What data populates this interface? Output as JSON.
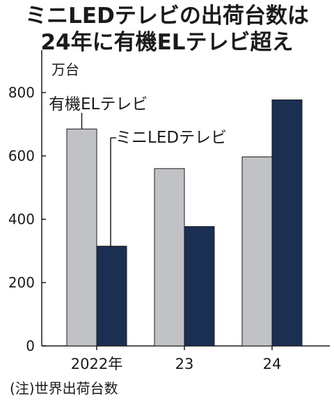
{
  "title_lines": [
    "ミニLEDテレビの出荷台数は",
    "24年に有機ELテレビ超え"
  ],
  "note": "(注)世界出荷台数",
  "chart_data": {
    "type": "bar",
    "unit_label": "万台",
    "categories": [
      "2022年",
      "23",
      "24"
    ],
    "series": [
      {
        "name": "有機ELテレビ",
        "values": [
          685,
          560,
          597
        ],
        "color": "#c0c2c5"
      },
      {
        "name": "ミニLEDテレビ",
        "values": [
          315,
          377,
          777
        ],
        "color": "#1b2f52"
      }
    ],
    "y_ticks": [
      0,
      200,
      400,
      600,
      800
    ],
    "ylim": [
      0,
      900
    ],
    "grid": false,
    "legend": "callout-labels"
  }
}
